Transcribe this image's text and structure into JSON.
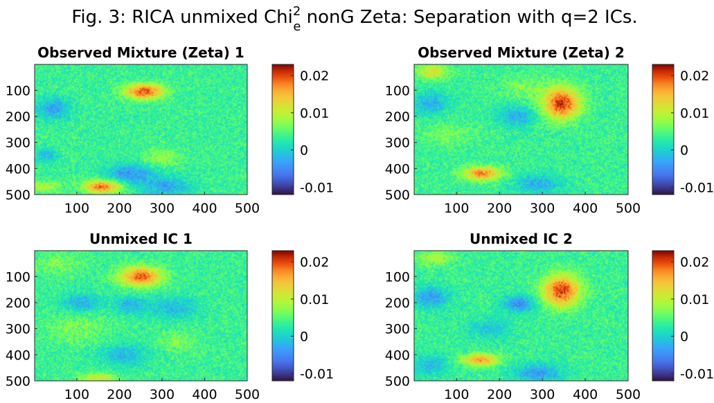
{
  "figure": {
    "title_prefix": "Fig. 3: RICA unmixed Chi",
    "title_sup": "2",
    "title_sub": "e",
    "title_suffix": " nonG Zeta: Separation with q=2 ICs."
  },
  "colormap": "turbo",
  "chart_data": [
    {
      "type": "heatmap",
      "title": "Observed Mixture (Zeta) 1",
      "xlim": [
        1,
        500
      ],
      "ylim": [
        1,
        500
      ],
      "y_reversed": true,
      "xticks": [
        100,
        200,
        300,
        400,
        500
      ],
      "yticks": [
        100,
        200,
        300,
        400,
        500
      ],
      "clim": [
        -0.012,
        0.023
      ],
      "colorbar_ticks": [
        {
          "value": 0.02,
          "label": "0.02"
        },
        {
          "value": 0.01,
          "label": "0.01"
        },
        {
          "value": 0,
          "label": "0"
        },
        {
          "value": -0.01,
          "label": "-0.01"
        }
      ],
      "baseline": 0.0035,
      "noise": 0.0032,
      "blobs": [
        {
          "x": 258,
          "y": 105,
          "sx": 32,
          "sy": 20,
          "amp": 0.0165
        },
        {
          "x": 160,
          "y": 470,
          "sx": 30,
          "sy": 18,
          "amp": 0.015
        },
        {
          "x": 15,
          "y": 470,
          "sx": 30,
          "sy": 15,
          "amp": 0.006
        },
        {
          "x": 300,
          "y": 358,
          "sx": 30,
          "sy": 22,
          "amp": 0.0045
        },
        {
          "x": 45,
          "y": 170,
          "sx": 28,
          "sy": 28,
          "amp": -0.007
        },
        {
          "x": 225,
          "y": 420,
          "sx": 40,
          "sy": 26,
          "amp": -0.0075
        },
        {
          "x": 310,
          "y": 470,
          "sx": 40,
          "sy": 25,
          "amp": -0.0065
        },
        {
          "x": 30,
          "y": 350,
          "sx": 18,
          "sy": 18,
          "amp": -0.005
        }
      ]
    },
    {
      "type": "heatmap",
      "title": "Observed Mixture (Zeta) 2",
      "xlim": [
        1,
        500
      ],
      "ylim": [
        1,
        500
      ],
      "y_reversed": true,
      "xticks": [
        100,
        200,
        300,
        400,
        500
      ],
      "yticks": [
        100,
        200,
        300,
        400,
        500
      ],
      "clim": [
        -0.012,
        0.023
      ],
      "colorbar_ticks": [
        {
          "value": 0.02,
          "label": "0.02"
        },
        {
          "value": 0.01,
          "label": "0.01"
        },
        {
          "value": 0,
          "label": "0"
        },
        {
          "value": -0.01,
          "label": "-0.01"
        }
      ],
      "baseline": 0.0035,
      "noise": 0.0032,
      "blobs": [
        {
          "x": 345,
          "y": 150,
          "sx": 30,
          "sy": 42,
          "amp": 0.0175
        },
        {
          "x": 160,
          "y": 420,
          "sx": 30,
          "sy": 18,
          "amp": 0.0145
        },
        {
          "x": 45,
          "y": 30,
          "sx": 26,
          "sy": 20,
          "amp": 0.008
        },
        {
          "x": 260,
          "y": 90,
          "sx": 40,
          "sy": 30,
          "amp": 0.003
        },
        {
          "x": 80,
          "y": 270,
          "sx": 40,
          "sy": 30,
          "amp": 0.003
        },
        {
          "x": 40,
          "y": 150,
          "sx": 30,
          "sy": 30,
          "amp": -0.006
        },
        {
          "x": 240,
          "y": 200,
          "sx": 30,
          "sy": 28,
          "amp": -0.006
        },
        {
          "x": 290,
          "y": 460,
          "sx": 40,
          "sy": 25,
          "amp": -0.006
        }
      ]
    },
    {
      "type": "heatmap",
      "title": "Unmixed IC 1",
      "xlim": [
        1,
        500
      ],
      "ylim": [
        1,
        500
      ],
      "y_reversed": true,
      "xticks": [
        100,
        200,
        300,
        400,
        500
      ],
      "yticks": [
        100,
        200,
        300,
        400,
        500
      ],
      "clim": [
        -0.012,
        0.023
      ],
      "colorbar_ticks": [
        {
          "value": 0.02,
          "label": "0.02"
        },
        {
          "value": 0.01,
          "label": "0.01"
        },
        {
          "value": 0,
          "label": "0"
        },
        {
          "value": -0.01,
          "label": "-0.01"
        }
      ],
      "baseline": 0.0035,
      "noise": 0.0032,
      "blobs": [
        {
          "x": 250,
          "y": 100,
          "sx": 34,
          "sy": 26,
          "amp": 0.016
        },
        {
          "x": 150,
          "y": 490,
          "sx": 30,
          "sy": 14,
          "amp": 0.007
        },
        {
          "x": 60,
          "y": 50,
          "sx": 40,
          "sy": 30,
          "amp": 0.003
        },
        {
          "x": 100,
          "y": 300,
          "sx": 50,
          "sy": 40,
          "amp": 0.003
        },
        {
          "x": 340,
          "y": 350,
          "sx": 30,
          "sy": 30,
          "amp": 0.003
        },
        {
          "x": 110,
          "y": 200,
          "sx": 30,
          "sy": 25,
          "amp": -0.006
        },
        {
          "x": 225,
          "y": 210,
          "sx": 30,
          "sy": 25,
          "amp": -0.005
        },
        {
          "x": 330,
          "y": 220,
          "sx": 40,
          "sy": 30,
          "amp": -0.005
        },
        {
          "x": 210,
          "y": 400,
          "sx": 40,
          "sy": 30,
          "amp": -0.005
        }
      ]
    },
    {
      "type": "heatmap",
      "title": "Unmixed IC 2",
      "xlim": [
        1,
        500
      ],
      "ylim": [
        1,
        500
      ],
      "y_reversed": true,
      "xticks": [
        100,
        200,
        300,
        400,
        500
      ],
      "yticks": [
        100,
        200,
        300,
        400,
        500
      ],
      "clim": [
        -0.012,
        0.023
      ],
      "colorbar_ticks": [
        {
          "value": 0.02,
          "label": "0.02"
        },
        {
          "value": 0.01,
          "label": "0.01"
        },
        {
          "value": 0,
          "label": "0"
        },
        {
          "value": -0.01,
          "label": "-0.01"
        }
      ],
      "baseline": 0.0035,
      "noise": 0.0032,
      "blobs": [
        {
          "x": 345,
          "y": 155,
          "sx": 30,
          "sy": 42,
          "amp": 0.017
        },
        {
          "x": 155,
          "y": 420,
          "sx": 30,
          "sy": 16,
          "amp": 0.013
        },
        {
          "x": 50,
          "y": 30,
          "sx": 30,
          "sy": 20,
          "amp": 0.005
        },
        {
          "x": 40,
          "y": 180,
          "sx": 30,
          "sy": 30,
          "amp": -0.007
        },
        {
          "x": 245,
          "y": 205,
          "sx": 25,
          "sy": 22,
          "amp": -0.0085
        },
        {
          "x": 180,
          "y": 300,
          "sx": 40,
          "sy": 30,
          "amp": -0.004
        },
        {
          "x": 290,
          "y": 470,
          "sx": 40,
          "sy": 25,
          "amp": -0.007
        },
        {
          "x": 40,
          "y": 440,
          "sx": 30,
          "sy": 30,
          "amp": -0.005
        }
      ]
    }
  ]
}
